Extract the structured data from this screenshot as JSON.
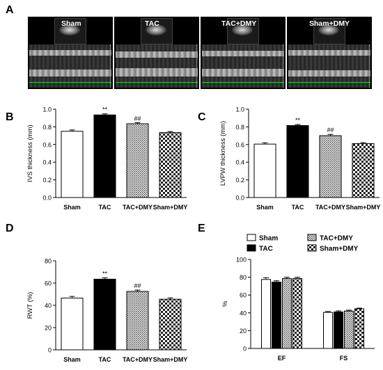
{
  "panelA": {
    "letter": "A",
    "images": [
      {
        "label": "Sham"
      },
      {
        "label": "TAC"
      },
      {
        "label": "TAC+DMY"
      },
      {
        "label": "Sham+DMY"
      }
    ]
  },
  "chart_data": [
    {
      "panel": "B",
      "type": "bar",
      "categories": [
        "Sham",
        "TAC",
        "TAC+DMY",
        "Sham+DMY"
      ],
      "values": [
        0.75,
        0.935,
        0.835,
        0.735
      ],
      "errors": [
        0.015,
        0.012,
        0.012,
        0.012
      ],
      "annotations": [
        "",
        "**",
        "##",
        ""
      ],
      "patterns": [
        "white",
        "black",
        "dots",
        "checker"
      ],
      "ylabel": "IVS thickness (mm)",
      "ylim": [
        0,
        1.0
      ],
      "yticks": [
        "0.0",
        "0.2",
        "0.4",
        "0.6",
        "0.8",
        "1.0"
      ]
    },
    {
      "panel": "C",
      "type": "bar",
      "categories": [
        "Sham",
        "TAC",
        "TAC+DMY",
        "Sham+DMY"
      ],
      "values": [
        0.605,
        0.815,
        0.7,
        0.61
      ],
      "errors": [
        0.015,
        0.012,
        0.015,
        0.012
      ],
      "annotations": [
        "",
        "**",
        "##",
        ""
      ],
      "patterns": [
        "white",
        "black",
        "dots",
        "checker"
      ],
      "ylabel": "LVPW thickness (mm)",
      "ylim": [
        0,
        1.0
      ],
      "yticks": [
        "0.0",
        "0.2",
        "0.4",
        "0.6",
        "0.8",
        "1.0"
      ]
    },
    {
      "panel": "D",
      "type": "bar",
      "categories": [
        "Sham",
        "TAC",
        "TAC+DMY",
        "Sham+DMY"
      ],
      "values": [
        46.5,
        63.5,
        52.5,
        45.5
      ],
      "errors": [
        1.5,
        1.2,
        1.2,
        1.2
      ],
      "annotations": [
        "",
        "**",
        "##",
        ""
      ],
      "patterns": [
        "white",
        "black",
        "dots",
        "checker"
      ],
      "ylabel": "RWT (%)",
      "ylim": [
        0,
        80
      ],
      "yticks": [
        "0",
        "20",
        "40",
        "60",
        "80"
      ]
    },
    {
      "panel": "E",
      "type": "bar",
      "categories": [
        "EF",
        "FS"
      ],
      "series": [
        {
          "name": "Sham",
          "pattern": "white",
          "values": [
            77.5,
            40.5
          ],
          "errors": [
            2.0,
            1.0
          ]
        },
        {
          "name": "TAC",
          "pattern": "black",
          "values": [
            74.5,
            41.0
          ],
          "errors": [
            1.5,
            1.2
          ]
        },
        {
          "name": "TAC+DMY",
          "pattern": "dots",
          "values": [
            78.5,
            42.0
          ],
          "errors": [
            1.5,
            1.0
          ]
        },
        {
          "name": "Sham+DMY",
          "pattern": "checker",
          "values": [
            78.5,
            44.5
          ],
          "errors": [
            1.5,
            0.8
          ]
        }
      ],
      "ylabel": "%",
      "ylim": [
        0,
        100
      ],
      "yticks": [
        "0",
        "20",
        "40",
        "60",
        "80",
        "100"
      ],
      "legend": "top"
    }
  ]
}
